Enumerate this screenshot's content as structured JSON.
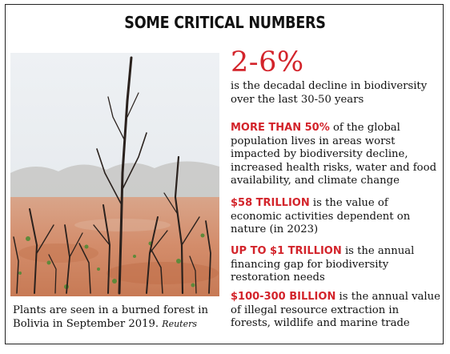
{
  "title": "SOME CRITICAL NUMBERS",
  "photo": {
    "caption": "Plants are seen in a burned forest in Bolivia in September 2019.",
    "credit": "Reuters"
  },
  "stats": [
    {
      "value": "2-6%",
      "text": "is the decadal decline in biodiversity over the last 30-50 years"
    },
    {
      "value": "MORE THAN 50%",
      "text": "of the global population lives in areas worst impacted by biodiversity decline, increased health risks, water and food availability, and climate change"
    },
    {
      "value": "$58 TRILLION",
      "text": "is the value of economic activities dependent on nature (in 2023)"
    },
    {
      "value": "UP TO $1 TRILLION",
      "text": "is the annual financing gap for biodiversity restoration needs"
    },
    {
      "value": "$100-300 BILLION",
      "text": "is the annual value of illegal resource extraction in forests, wildlife and marine trade"
    }
  ],
  "colors": {
    "accent": "#d3242b",
    "text": "#111111",
    "border": "#222222"
  }
}
